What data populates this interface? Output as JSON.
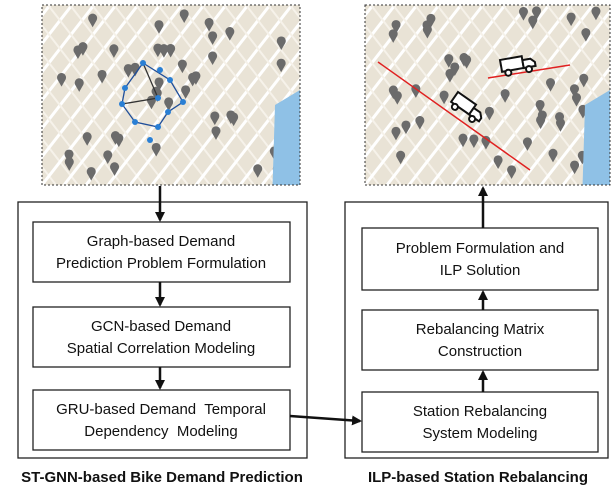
{
  "left": {
    "caption": "ST-GNN-based Bike Demand Prediction",
    "boxes": [
      {
        "lines": [
          "Graph-based Demand",
          "Prediction Problem Formulation"
        ]
      },
      {
        "lines": [
          "GCN-based Demand",
          "Spatial Correlation Modeling"
        ]
      },
      {
        "lines": [
          "GRU-based Demand  Temporal",
          "Dependency  Modeling"
        ]
      }
    ]
  },
  "right": {
    "caption": "ILP-based Station Rebalancing",
    "boxes": [
      {
        "lines": [
          "Problem Formulation and",
          "ILP Solution"
        ]
      },
      {
        "lines": [
          "Rebalancing Matrix",
          "Construction"
        ]
      },
      {
        "lines": [
          "Station Rebalancing",
          "System Modeling"
        ]
      }
    ]
  }
}
